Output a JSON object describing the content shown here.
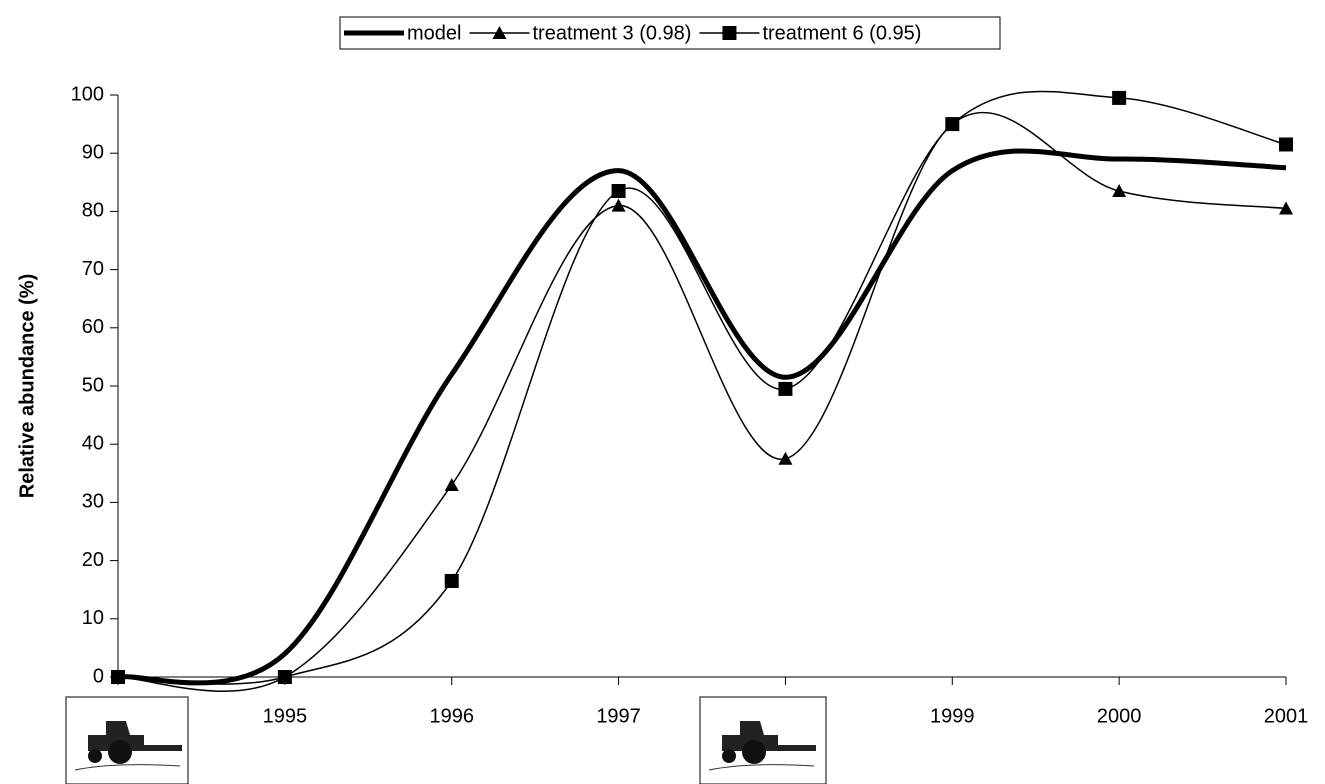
{
  "chart_data": {
    "type": "line",
    "y_label": "Relative abundance (%)",
    "categories": [
      null,
      "1995",
      "1996",
      "1997",
      null,
      "1999",
      "2000",
      "2001"
    ],
    "series": [
      {
        "name": "model",
        "color": "#000000",
        "line_width": 5,
        "marker": null,
        "values": [
          0,
          4,
          52,
          87,
          51.5,
          87,
          89,
          87.5
        ]
      },
      {
        "name": "treatment 3 (0.98)",
        "color": "#000000",
        "line_width": 1.5,
        "marker": "triangle",
        "values": [
          0,
          0,
          33,
          81,
          37.5,
          95,
          83.5,
          80.5
        ]
      },
      {
        "name": "treatment 6 (0.95)",
        "color": "#000000",
        "line_width": 1.5,
        "marker": "square",
        "values": [
          0,
          0,
          16.5,
          83.5,
          49.5,
          95,
          99.5,
          91.5
        ]
      }
    ],
    "ylim": [
      0,
      100
    ],
    "yticks": [
      0,
      10,
      20,
      30,
      40,
      50,
      60,
      70,
      80,
      90,
      100
    ],
    "grid": false
  }
}
